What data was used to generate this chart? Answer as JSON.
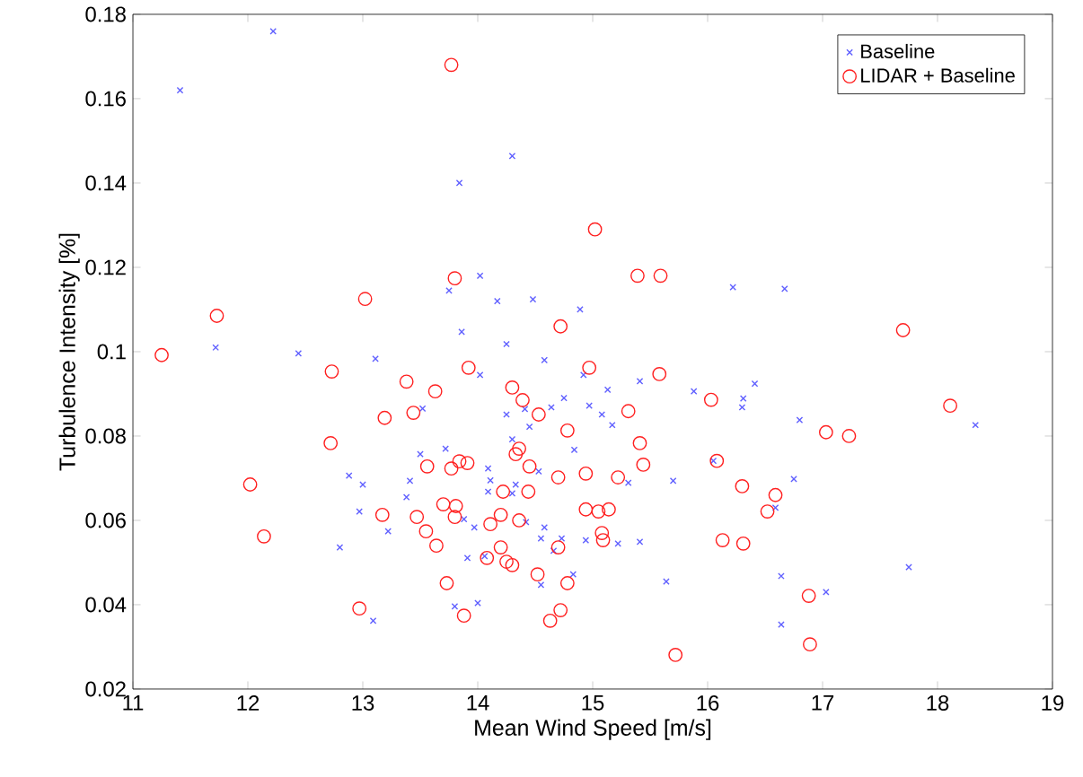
{
  "chart_data": {
    "type": "scatter",
    "xlabel": "Mean Wind Speed [m/s]",
    "ylabel": "Turbulence Intensity [%]",
    "xlim": [
      11,
      19
    ],
    "ylim": [
      0.02,
      0.18
    ],
    "xticks": [
      11,
      12,
      13,
      14,
      15,
      16,
      17,
      18,
      19
    ],
    "yticks": [
      0.02,
      0.04,
      0.06,
      0.08,
      0.1,
      0.12,
      0.14,
      0.16,
      0.18
    ],
    "grid": false,
    "legend": "top right",
    "series": [
      {
        "name": "Baseline",
        "color": "#6060ff",
        "marker": "cross",
        "x": [
          11.41,
          12.22,
          11.72,
          12.44,
          13.11,
          13.75,
          13.84,
          14.02,
          13.86,
          14.17,
          14.3,
          14.25,
          14.48,
          14.58,
          14.89,
          14.92,
          14.02,
          16.22,
          16.67,
          15.13,
          15.41,
          15.88,
          16.41,
          14.97,
          15.08,
          15.17,
          16.31,
          16.3,
          16.8,
          18.33,
          16.05,
          15.31,
          15.7,
          16.75,
          16.59,
          14.94,
          15.22,
          15.41,
          15.64,
          16.64,
          17.03,
          17.75,
          16.64,
          13.52,
          14.25,
          14.41,
          14.64,
          14.75,
          14.45,
          13.5,
          13.72,
          14.3,
          14.09,
          14.11,
          14.53,
          14.84,
          12.88,
          13.0,
          13.41,
          13.38,
          14.09,
          14.33,
          14.3,
          12.97,
          13.22,
          12.8,
          13.88,
          13.97,
          14.42,
          14.58,
          14.55,
          14.73,
          13.91,
          14.06,
          14.66,
          14.83,
          14.55,
          13.8,
          14.0,
          13.09
        ],
        "values": [
          0.162,
          0.176,
          0.101,
          0.0996,
          0.0983,
          0.1145,
          0.14,
          0.118,
          0.1047,
          0.112,
          0.1464,
          0.1018,
          0.1124,
          0.098,
          0.11,
          0.0945,
          0.0945,
          0.1153,
          0.1149,
          0.091,
          0.093,
          0.0906,
          0.0924,
          0.0872,
          0.0851,
          0.0826,
          0.0889,
          0.0868,
          0.0838,
          0.0826,
          0.0741,
          0.0689,
          0.0694,
          0.0698,
          0.063,
          0.0553,
          0.0545,
          0.0549,
          0.0455,
          0.0468,
          0.043,
          0.0489,
          0.0353,
          0.0865,
          0.0851,
          0.0864,
          0.0868,
          0.089,
          0.0822,
          0.0757,
          0.077,
          0.0792,
          0.0723,
          0.0695,
          0.0716,
          0.0767,
          0.0706,
          0.0685,
          0.0694,
          0.0655,
          0.0668,
          0.0685,
          0.0664,
          0.0621,
          0.0574,
          0.0536,
          0.0603,
          0.0583,
          0.0596,
          0.0583,
          0.0557,
          0.0557,
          0.0511,
          0.0515,
          0.0528,
          0.0472,
          0.0447,
          0.0396,
          0.0404,
          0.0362
        ]
      },
      {
        "name": "LIDAR + Baseline",
        "color": "#ff2020",
        "marker": "circle",
        "x": [
          11.25,
          11.73,
          12.73,
          13.02,
          13.38,
          13.63,
          13.77,
          13.8,
          13.92,
          14.3,
          14.72,
          14.97,
          15.02,
          15.39,
          15.59,
          17.7,
          15.58,
          16.03,
          18.11,
          15.31,
          17.03,
          17.23,
          15.41,
          15.44,
          16.08,
          14.94,
          15.22,
          16.3,
          16.59,
          16.52,
          14.94,
          15.05,
          15.14,
          15.08,
          15.09,
          16.13,
          16.31,
          16.88,
          16.89,
          15.72,
          14.39,
          14.53,
          12.72,
          13.19,
          13.44,
          14.78,
          13.56,
          13.77,
          13.84,
          13.91,
          14.36,
          14.33,
          14.45,
          14.7,
          12.02,
          14.22,
          14.44,
          13.7,
          13.81,
          13.8,
          13.17,
          13.47,
          14.2,
          14.36,
          14.11,
          12.14,
          13.55,
          13.64,
          14.2,
          14.08,
          14.25,
          14.3,
          14.7,
          14.78,
          14.52,
          13.73,
          12.97,
          13.88,
          14.63,
          14.72
        ],
        "values": [
          0.0992,
          0.1085,
          0.0953,
          0.1125,
          0.0929,
          0.0906,
          0.168,
          0.1174,
          0.0962,
          0.0915,
          0.106,
          0.0962,
          0.129,
          0.118,
          0.118,
          0.1051,
          0.0947,
          0.0886,
          0.0872,
          0.0859,
          0.0809,
          0.08,
          0.0783,
          0.0732,
          0.0741,
          0.0711,
          0.0702,
          0.0681,
          0.066,
          0.0621,
          0.0626,
          0.0621,
          0.0626,
          0.057,
          0.0553,
          0.0553,
          0.0545,
          0.0421,
          0.0306,
          0.0281,
          0.0885,
          0.0851,
          0.0783,
          0.0843,
          0.0855,
          0.0813,
          0.0728,
          0.0723,
          0.074,
          0.0736,
          0.077,
          0.0757,
          0.0728,
          0.0702,
          0.0685,
          0.0668,
          0.0668,
          0.0638,
          0.0634,
          0.0608,
          0.0613,
          0.0608,
          0.0613,
          0.06,
          0.0591,
          0.0562,
          0.0574,
          0.054,
          0.0536,
          0.0511,
          0.0502,
          0.0494,
          0.0536,
          0.0451,
          0.0472,
          0.0451,
          0.0391,
          0.0374,
          0.0362,
          0.0387
        ]
      }
    ]
  }
}
